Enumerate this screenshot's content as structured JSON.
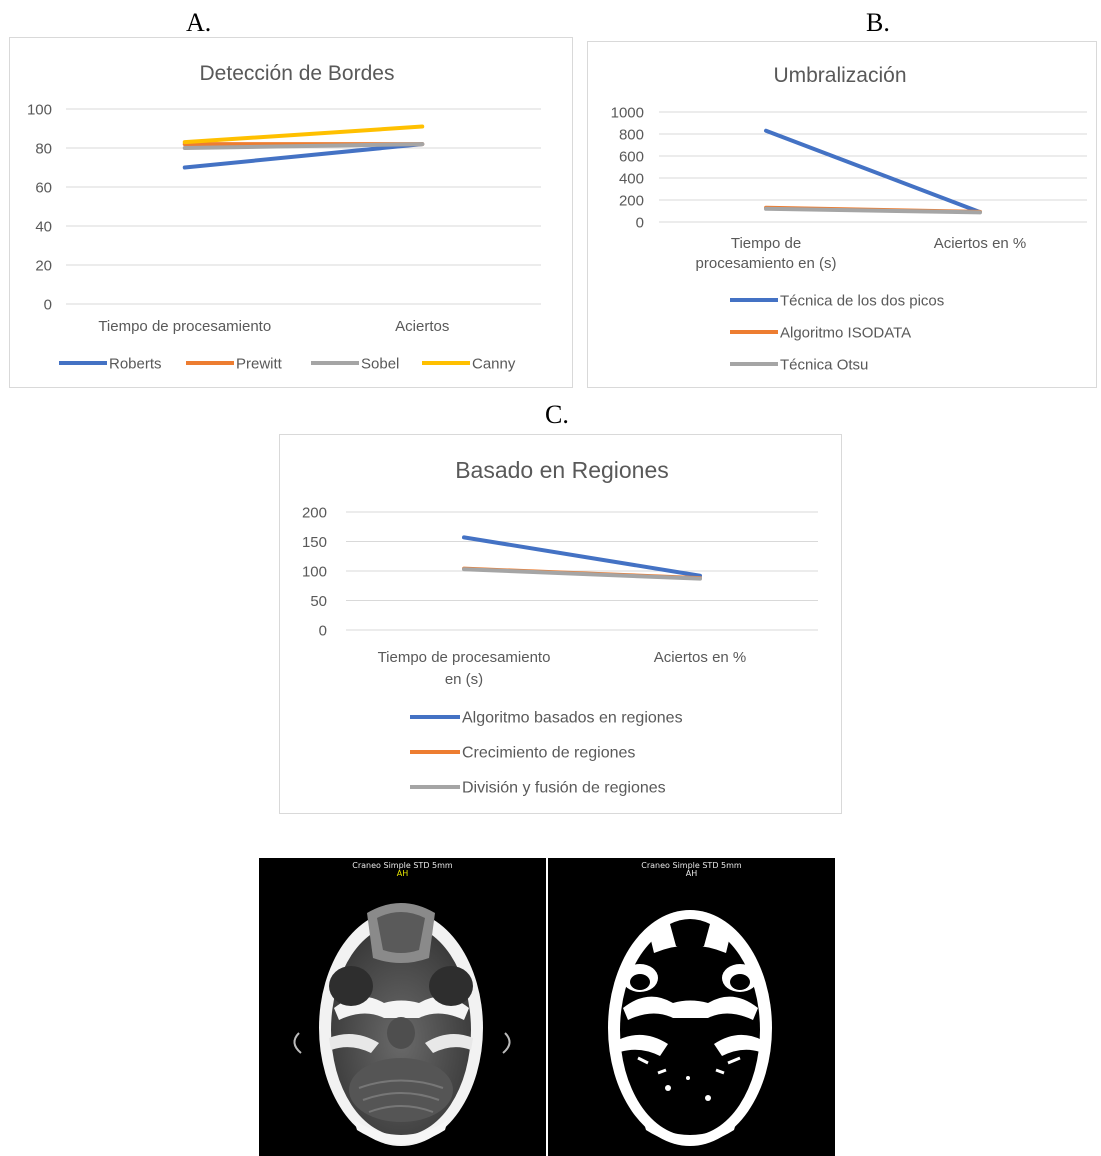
{
  "figure_labels": {
    "a": "A.",
    "b": "B.",
    "c": "C."
  },
  "colors": {
    "blue": "#4472c4",
    "orange": "#ed7d31",
    "gray": "#a5a5a5",
    "gold": "#ffc000",
    "grid": "#d9d9d9",
    "text": "#595959"
  },
  "chart_data": [
    {
      "id": "A",
      "type": "line",
      "title": "Detección de Bordes",
      "categories": [
        "Tiempo de procesamiento",
        "Aciertos"
      ],
      "ylim": [
        0,
        100
      ],
      "yticks": [
        "0",
        "20",
        "40",
        "60",
        "80",
        "100"
      ],
      "grid": true,
      "legend": "bottom-row",
      "series": [
        {
          "name": "Roberts",
          "color": "#4472c4",
          "values": [
            70,
            82
          ]
        },
        {
          "name": "Prewitt",
          "color": "#ed7d31",
          "values": [
            82,
            82
          ]
        },
        {
          "name": "Sobel",
          "color": "#a5a5a5",
          "values": [
            80,
            82
          ]
        },
        {
          "name": "Canny",
          "color": "#ffc000",
          "values": [
            83,
            91
          ]
        }
      ]
    },
    {
      "id": "B",
      "type": "line",
      "title": "Umbralización",
      "categories": [
        [
          "Tiempo de",
          "procesamiento en (s)"
        ],
        [
          "Aciertos en %"
        ]
      ],
      "ylim": [
        0,
        1000
      ],
      "yticks": [
        "0",
        "200",
        "400",
        "600",
        "800",
        "1000"
      ],
      "grid": true,
      "legend": "bottom-column",
      "series": [
        {
          "name": "Técnica de los dos picos",
          "color": "#4472c4",
          "values": [
            830,
            90
          ]
        },
        {
          "name": "Algoritmo ISODATA",
          "color": "#ed7d31",
          "values": [
            130,
            92
          ]
        },
        {
          "name": "Técnica Otsu",
          "color": "#a5a5a5",
          "values": [
            120,
            88
          ]
        }
      ]
    },
    {
      "id": "C",
      "type": "line",
      "title": "Basado en Regiones",
      "categories": [
        [
          "Tiempo de procesamiento",
          "en (s)"
        ],
        [
          "Aciertos en %"
        ]
      ],
      "ylim": [
        0,
        200
      ],
      "yticks": [
        "0",
        "50",
        "100",
        "150",
        "200"
      ],
      "grid": true,
      "legend": "bottom-column",
      "series": [
        {
          "name": "Algoritmo basados en regiones",
          "color": "#4472c4",
          "values": [
            157,
            92
          ]
        },
        {
          "name": "Crecimiento de regiones",
          "color": "#ed7d31",
          "values": [
            104,
            88
          ]
        },
        {
          "name": "División y fusión de regiones",
          "color": "#a5a5a5",
          "values": [
            103,
            87
          ]
        }
      ]
    }
  ],
  "ct_images": {
    "left": {
      "caption": "Craneo Simple STD 5mm",
      "tag": "AH"
    },
    "right": {
      "caption": "Craneo Simple STD 5mm",
      "tag": "AH"
    }
  }
}
